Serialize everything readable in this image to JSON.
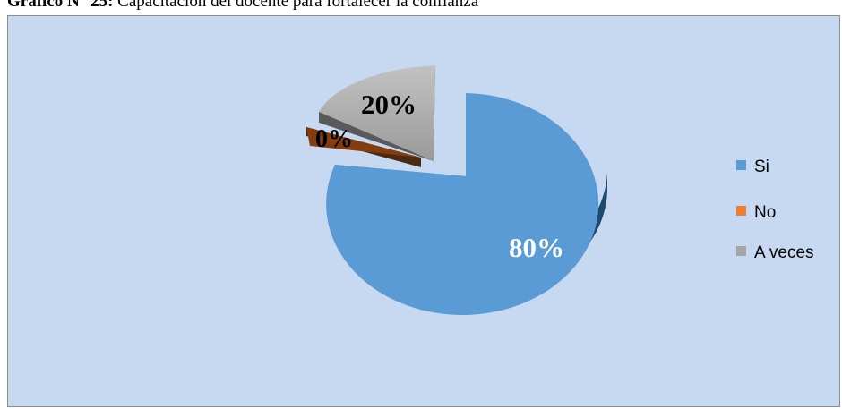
{
  "caption": {
    "bold": "Gráfico N° 25:",
    "text": " Capacitación del docente para fortalecer la confianza"
  },
  "chart_data": {
    "type": "pie",
    "categories": [
      "Si",
      "No",
      "A veces"
    ],
    "values": [
      80,
      0,
      20
    ],
    "data_labels": [
      "80%",
      "0%",
      "20%"
    ],
    "colors": [
      "#5b9bd5",
      "#ed7d31",
      "#a5a5a5"
    ],
    "legend_position": "right",
    "style": "3d-exploded"
  }
}
